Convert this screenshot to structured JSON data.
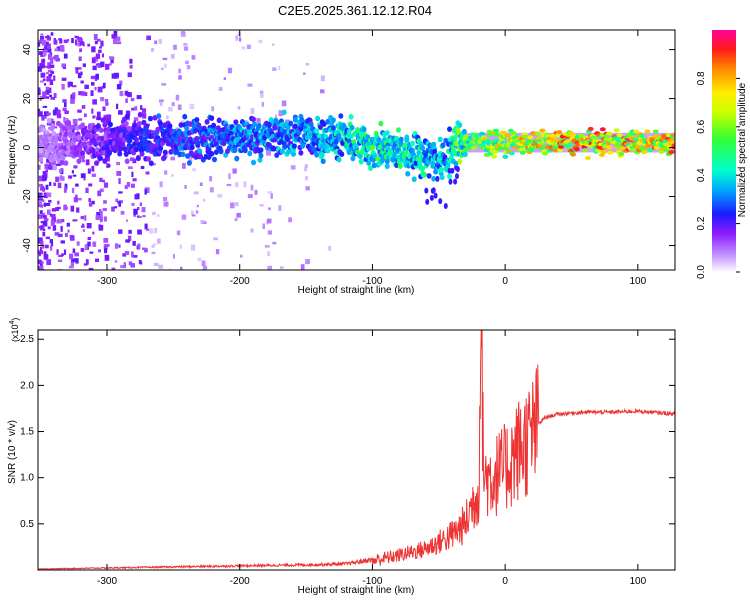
{
  "title": "C2E5.2025.361.12.12.R04",
  "chart_data": [
    {
      "type": "heatmap",
      "xlabel": "Height of straight line (km)",
      "ylabel": "Frequency (Hz)",
      "xlim": [
        -352,
        128
      ],
      "ylim": [
        -50,
        48
      ],
      "xticks": [
        -300,
        -200,
        -100,
        0,
        100
      ],
      "yticks": [
        -40,
        -20,
        0,
        20,
        40
      ],
      "xtick_labels": [
        "-300",
        "-200",
        "-100",
        "0",
        "100"
      ],
      "ytick_labels": [
        "-40",
        "-20",
        "0",
        "20",
        "40"
      ],
      "ridge": {
        "x": [
          -352,
          -300,
          -250,
          -200,
          -150,
          -120,
          -100,
          -80,
          -60,
          -45,
          -35,
          -20,
          0,
          50,
          128
        ],
        "freq": [
          2,
          3,
          3,
          4,
          5,
          3,
          0,
          -2,
          -3,
          -5,
          2,
          2,
          2,
          2,
          2
        ],
        "amplitude": [
          0.08,
          0.18,
          0.25,
          0.3,
          0.32,
          0.4,
          0.45,
          0.42,
          0.38,
          0.35,
          0.5,
          0.6,
          0.62,
          0.75,
          0.7
        ]
      },
      "colorbar": {
        "label": "Normalized spectral amplitude",
        "range": [
          0,
          1
        ],
        "ticks": [
          0.0,
          0.2,
          0.4,
          0.6,
          0.8
        ],
        "tick_labels": [
          "0.0",
          "0.2",
          "0.4",
          "0.6",
          "0.8"
        ]
      }
    },
    {
      "type": "line",
      "xlabel": "Height of straight line (km)",
      "ylabel": "SNR (10 * v/v)",
      "multiplier_label": "(x10",
      "multiplier_exponent": "4",
      "multiplier_close": ")",
      "xlim": [
        -352,
        128
      ],
      "ylim": [
        0,
        2.6
      ],
      "xticks": [
        -300,
        -200,
        -100,
        0,
        100
      ],
      "yticks": [
        0.5,
        1.0,
        1.5,
        2.0,
        2.5
      ],
      "xtick_labels": [
        "-300",
        "-200",
        "-100",
        "0",
        "100"
      ],
      "ytick_labels": [
        "0.5",
        "1.0",
        "1.5",
        "2.0",
        "2.5"
      ],
      "color": "#ee3333",
      "series": [
        {
          "name": "SNR",
          "x": [
            -352,
            -300,
            -250,
            -200,
            -150,
            -120,
            -100,
            -80,
            -60,
            -50,
            -40,
            -30,
            -25,
            -20,
            -18,
            -16,
            -10,
            0,
            10,
            20,
            25,
            30,
            40,
            60,
            80,
            100,
            128
          ],
          "y": [
            0.01,
            0.02,
            0.03,
            0.04,
            0.05,
            0.06,
            0.1,
            0.16,
            0.23,
            0.3,
            0.38,
            0.5,
            0.7,
            0.85,
            2.6,
            1.0,
            1.0,
            1.1,
            1.3,
            1.45,
            1.58,
            1.65,
            1.69,
            1.71,
            1.71,
            1.72,
            1.69
          ]
        }
      ]
    }
  ]
}
